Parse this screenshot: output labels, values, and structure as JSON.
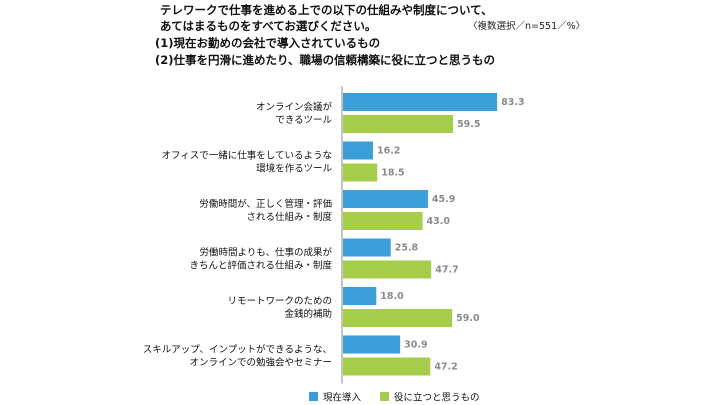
{
  "header": {
    "question_line1": "テレワークで仕事を進める上での以下の仕組みや制度について、",
    "question_line2": "あてはまるものをすべてお選びください。",
    "sub1": "(1)現在お勤めの会社で導入されているもの",
    "sub2": "(2)仕事を円滑に進めたり、職場の信頼構築に役に立つと思うもの",
    "note": "〈複数選択／n=551／%〉"
  },
  "colors": {
    "series1": "#3a9fd8",
    "series2": "#a6cd4a",
    "axis": "#888888"
  },
  "chart_data": {
    "type": "bar",
    "orientation": "horizontal",
    "categories": [
      [
        "オンライン会議が",
        "できるツール"
      ],
      [
        "オフィスで一緒に仕事をしているような",
        "環境を作るツール"
      ],
      [
        "労働時間が、正しく管理・評価",
        "される仕組み・制度"
      ],
      [
        "労働時間よりも、仕事の成果が",
        "きちんと評価される仕組み・制度"
      ],
      [
        "リモートワークのための",
        "金銭的補助"
      ],
      [
        "スキルアップ、インプットができるような、",
        "オンラインでの勉強会やセミナー"
      ]
    ],
    "series": [
      {
        "name": "現在導入",
        "values": [
          83.3,
          16.2,
          45.9,
          25.8,
          18.0,
          30.9
        ]
      },
      {
        "name": "役に立つと思うもの",
        "values": [
          59.5,
          18.5,
          43.0,
          47.7,
          59.0,
          47.2
        ]
      }
    ],
    "xlim": [
      0,
      100
    ],
    "grid": false,
    "legend_position": "bottom"
  }
}
